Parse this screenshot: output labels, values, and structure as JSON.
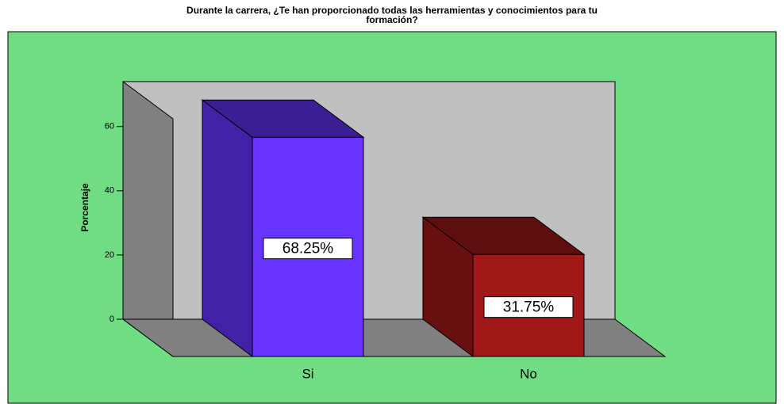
{
  "chart_data": {
    "type": "bar3d",
    "title": "Durante la carrera, ¿Te han proporcionado todas las herramientas y conocimientos para tu formación?",
    "ylabel": "Porcentaje",
    "categories": [
      "Si",
      "No"
    ],
    "values": [
      68.25,
      31.75
    ],
    "value_labels": [
      "68.25%",
      "31.75%"
    ],
    "colors": [
      "#6633ff",
      "#a01818"
    ],
    "ylim": [
      0,
      74
    ],
    "yticks": [
      0,
      20,
      40,
      60
    ]
  }
}
